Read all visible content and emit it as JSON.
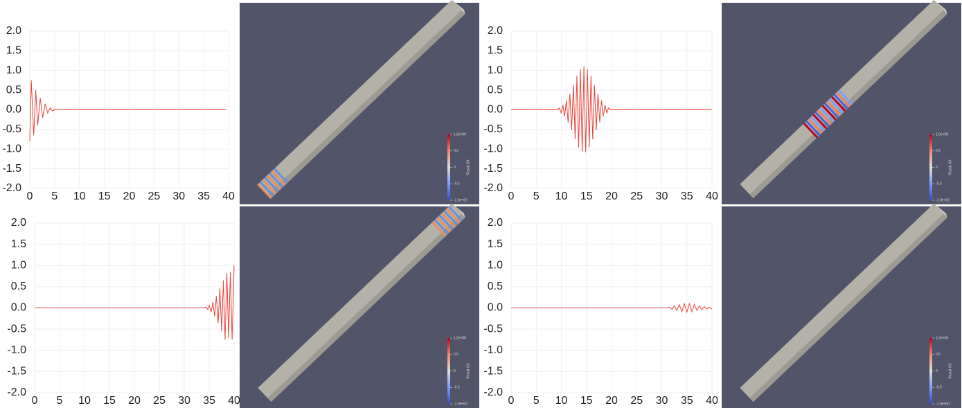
{
  "chart_data": [
    {
      "type": "line",
      "color": "#e8443a",
      "x": [
        0,
        0.3,
        0.8,
        1.2,
        1.6,
        2.1,
        2.6,
        3.1,
        3.6,
        4.1,
        4.6,
        5.1,
        6,
        39.5
      ],
      "values": [
        -0.8,
        0.75,
        -0.65,
        0.5,
        -0.4,
        0.3,
        -0.2,
        0.15,
        -0.08,
        0.05,
        -0.03,
        0.01,
        0,
        0
      ],
      "xlim": [
        0,
        40
      ],
      "ylim": [
        -2,
        2
      ],
      "xticks": [
        0,
        5,
        10,
        15,
        20,
        25,
        30,
        35,
        40
      ],
      "yticks": [
        {
          "value": 2,
          "label": "2.0"
        },
        1.5,
        {
          "value": 1,
          "label": "1.0"
        },
        0.5,
        {
          "value": 0,
          "label": "0.0"
        },
        -0.5,
        {
          "value": -1,
          "label": "-1.0"
        },
        -1.5,
        {
          "value": -2,
          "label": "-2.0"
        }
      ],
      "grid": true
    },
    {
      "type": "line",
      "color": "#e8443a",
      "x": [
        0,
        9.25,
        9.6,
        9.95,
        10.3,
        10.65,
        11.0,
        11.35,
        11.7,
        12.05,
        12.4,
        12.75,
        13.1,
        13.45,
        13.8,
        14.15,
        14.5,
        14.85,
        15.2,
        15.55,
        15.9,
        16.25,
        16.6,
        16.95,
        17.3,
        17.65,
        18.0,
        18.35,
        18.7,
        19.05,
        19.4,
        19.75,
        40
      ],
      "values": [
        0,
        0,
        0.05,
        -0.08,
        0.12,
        -0.17,
        0.24,
        -0.32,
        0.41,
        -0.52,
        0.63,
        -0.75,
        0.86,
        -0.96,
        1.03,
        -1.08,
        1.1,
        -1.08,
        1.03,
        -0.96,
        0.86,
        -0.75,
        0.63,
        -0.52,
        0.41,
        -0.32,
        0.24,
        -0.17,
        0.12,
        -0.08,
        0.05,
        0,
        0
      ],
      "xlim": [
        0,
        40
      ],
      "ylim": [
        -2,
        2
      ],
      "xticks": [
        0,
        5,
        10,
        15,
        20,
        25,
        30,
        35,
        40
      ],
      "yticks": [
        {
          "value": 2,
          "label": "2.0"
        },
        1.5,
        {
          "value": 1,
          "label": "1.0"
        },
        0.5,
        {
          "value": 0,
          "label": "0.0"
        },
        -0.5,
        {
          "value": -1,
          "label": "-1.0"
        },
        -1.5,
        {
          "value": -2,
          "label": "-2.0"
        }
      ],
      "grid": true
    },
    {
      "type": "line",
      "color": "#e8443a",
      "x": [
        0,
        34.0,
        34.35,
        34.7,
        35.05,
        35.4,
        35.75,
        36.1,
        36.45,
        36.8,
        37.15,
        37.5,
        37.85,
        38.2,
        38.55,
        38.9,
        39.25,
        39.6,
        40
      ],
      "values": [
        0,
        0,
        0.02,
        -0.04,
        0.06,
        -0.1,
        0.14,
        -0.2,
        0.28,
        -0.36,
        0.46,
        -0.55,
        0.65,
        -0.75,
        0.82,
        -0.7,
        0.85,
        -0.75,
        1.0
      ],
      "xlim": [
        0,
        40
      ],
      "ylim": [
        -2,
        2
      ],
      "xticks": [
        0,
        5,
        10,
        15,
        20,
        25,
        30,
        35,
        40
      ],
      "yticks": [
        {
          "value": 2,
          "label": "2.0"
        },
        1.5,
        {
          "value": 1,
          "label": "1.0"
        },
        0.5,
        {
          "value": 0,
          "label": "0.0"
        },
        -0.5,
        {
          "value": -1,
          "label": "-1.0"
        },
        -1.5,
        {
          "value": -2,
          "label": "-2.0"
        }
      ],
      "grid": true
    },
    {
      "type": "line",
      "color": "#e8443a",
      "x": [
        0,
        31.0,
        31.5,
        32,
        32.5,
        33,
        33.5,
        34,
        34.5,
        35,
        35.5,
        36,
        36.5,
        37,
        37.5,
        38,
        38.5,
        39,
        39.5,
        40
      ],
      "values": [
        0,
        0,
        0.02,
        -0.03,
        0.05,
        -0.06,
        0.08,
        -0.09,
        0.1,
        -0.1,
        0.1,
        -0.09,
        0.08,
        -0.06,
        0.05,
        -0.04,
        0.03,
        -0.03,
        0.02,
        -0.03
      ],
      "xlim": [
        0,
        40
      ],
      "ylim": [
        -2,
        2
      ],
      "xticks": [
        0,
        5,
        10,
        15,
        20,
        25,
        30,
        35,
        40
      ],
      "yticks": [
        {
          "value": 2,
          "label": "2.0"
        },
        1.5,
        {
          "value": 1,
          "label": "1.0"
        },
        0.5,
        {
          "value": 0,
          "label": "0.0"
        },
        -0.5,
        {
          "value": -1,
          "label": "-1.0"
        },
        -1.5,
        {
          "value": -2,
          "label": "-2.0"
        }
      ],
      "grid": true
    }
  ],
  "renders": [
    {
      "colorbar": {
        "title": "Result XX",
        "lim": [
          -1,
          1
        ],
        "ticks": [
          {
            "value": 1,
            "label": "1.0e+00"
          },
          0.5,
          0,
          -0.5,
          {
            "value": -1,
            "label": "-1.0e+00"
          }
        ]
      }
    },
    {
      "colorbar": {
        "title": "Result XX",
        "lim": [
          -1,
          1
        ],
        "ticks": [
          {
            "value": 1,
            "label": "1.0e+00"
          },
          0.5,
          0,
          -0.5,
          {
            "value": -1,
            "label": "-1.0e+00"
          }
        ]
      }
    },
    {
      "colorbar": {
        "title": "Result XX",
        "lim": [
          -1,
          1
        ],
        "ticks": [
          {
            "value": 1,
            "label": "1.0e+00"
          },
          0.5,
          0,
          -0.5,
          {
            "value": -1,
            "label": "-1.0e+00"
          }
        ]
      }
    },
    {
      "colorbar": {
        "title": "Result XX",
        "lim": [
          -1,
          1
        ],
        "ticks": [
          {
            "value": 1,
            "label": "1.0e+00"
          },
          0.5,
          0,
          -0.5,
          {
            "value": -1,
            "label": "-1.0e+00"
          }
        ]
      }
    }
  ]
}
